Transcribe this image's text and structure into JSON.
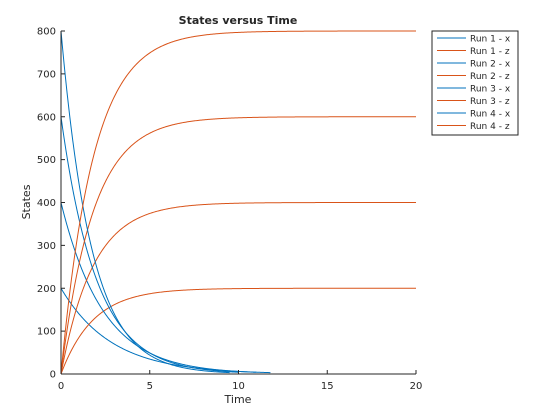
{
  "chart_data": {
    "type": "line",
    "title": "States versus Time",
    "xlabel": "Time",
    "ylabel": "States",
    "xlim": [
      0,
      20
    ],
    "ylim": [
      0,
      800
    ],
    "xticks": [
      0,
      5,
      10,
      15,
      20
    ],
    "yticks": [
      0,
      100,
      200,
      300,
      400,
      500,
      600,
      700,
      800
    ],
    "grid": false,
    "legend_position": "outside-top-right",
    "colors": {
      "x": "#0072bd",
      "z": "#d95319",
      "axis": "#262626"
    },
    "series": [
      {
        "name": "Run 1 - x",
        "kind": "x",
        "x0": 200,
        "decay_rate": 0.35,
        "x_end": 11.8,
        "x": [
          0,
          1,
          2,
          3,
          4,
          6,
          8,
          10,
          11.8
        ],
        "y": [
          200,
          140,
          99,
          70,
          49,
          24,
          12,
          6,
          3
        ]
      },
      {
        "name": "Run 1 - z",
        "kind": "z",
        "z_final": 200,
        "rise_rate": 0.55,
        "x": [
          0,
          1,
          2,
          3,
          4,
          5,
          6,
          8,
          10,
          20
        ],
        "y": [
          0,
          85,
          133,
          162,
          178,
          187,
          193,
          197,
          199,
          200
        ]
      },
      {
        "name": "Run 2 - x",
        "kind": "x",
        "x0": 400,
        "decay_rate": 0.42,
        "x_end": 11,
        "x": [
          0,
          1,
          2,
          3,
          4,
          6,
          8,
          10,
          11
        ],
        "y": [
          400,
          263,
          173,
          114,
          75,
          32,
          14,
          6,
          4
        ]
      },
      {
        "name": "Run 2 - z",
        "kind": "z",
        "z_final": 400,
        "rise_rate": 0.55,
        "x": [
          0,
          1,
          2,
          3,
          4,
          5,
          6,
          8,
          10,
          20
        ],
        "y": [
          0,
          170,
          266,
          323,
          356,
          375,
          386,
          396,
          398,
          400
        ]
      },
      {
        "name": "Run 3 - x",
        "kind": "x",
        "x0": 600,
        "decay_rate": 0.5,
        "x_end": 10,
        "x": [
          0,
          1,
          2,
          3,
          4,
          6,
          8,
          10
        ],
        "y": [
          600,
          364,
          221,
          134,
          81,
          30,
          11,
          4
        ]
      },
      {
        "name": "Run 3 - z",
        "kind": "z",
        "z_final": 600,
        "rise_rate": 0.55,
        "x": [
          0,
          1,
          2,
          3,
          4,
          5,
          6,
          8,
          10,
          20
        ],
        "y": [
          0,
          255,
          399,
          485,
          534,
          562,
          578,
          593,
          598,
          600
        ]
      },
      {
        "name": "Run 4 - x",
        "kind": "x",
        "x0": 800,
        "decay_rate": 0.58,
        "x_end": 9.5,
        "x": [
          0,
          1,
          2,
          3,
          4,
          6,
          8,
          9.5
        ],
        "y": [
          800,
          448,
          251,
          140,
          79,
          25,
          8,
          3
        ]
      },
      {
        "name": "Run 4 - z",
        "kind": "z",
        "z_final": 800,
        "rise_rate": 0.55,
        "x": [
          0,
          1,
          2,
          3,
          4,
          5,
          6,
          8,
          10,
          20
        ],
        "y": [
          0,
          340,
          532,
          646,
          712,
          750,
          771,
          790,
          797,
          800
        ]
      }
    ]
  }
}
